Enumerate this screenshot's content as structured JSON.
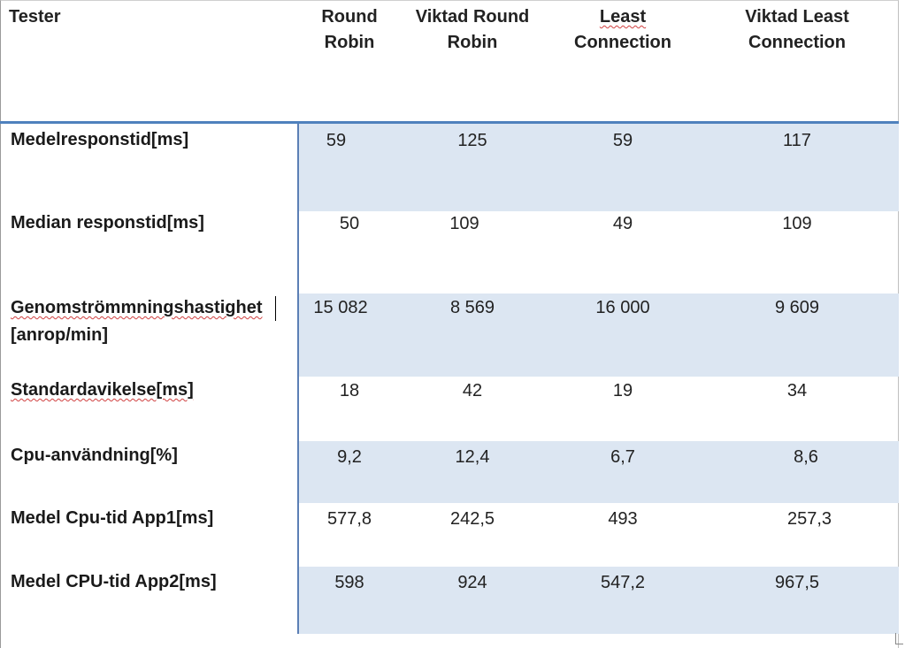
{
  "table": {
    "header": {
      "tester": "Tester",
      "columns": [
        {
          "line1": "Round",
          "line2": "Robin"
        },
        {
          "line1": "Viktad Round",
          "line2": "Robin"
        },
        {
          "line1": "Least",
          "line2": "Connection"
        },
        {
          "line1": "Viktad Least",
          "line2": "Connection"
        }
      ]
    },
    "rows": [
      {
        "label": "Medelresponstid[ms]",
        "values": [
          "59",
          "125",
          "59",
          "117"
        ]
      },
      {
        "label": "Median responstid[ms]",
        "values": [
          "50",
          "109",
          "49",
          "109"
        ]
      },
      {
        "label_line1": "Genomströmmningshastighet",
        "label_line2": "[anrop/min]",
        "values": [
          "15 082",
          "8 569",
          "16 000",
          "9 609"
        ]
      },
      {
        "label": "Standardavikelse[ms]",
        "values": [
          "18",
          "42",
          "19",
          "34"
        ]
      },
      {
        "label": "Cpu-användning[%]",
        "values": [
          "9,2",
          "12,4",
          "6,7",
          "8,6"
        ]
      },
      {
        "label": "Medel Cpu-tid App1[ms]",
        "values": [
          "577,8",
          "242,5",
          "493",
          "257,3"
        ]
      },
      {
        "label": "Medel CPU-tid App2[ms]",
        "values": [
          "598",
          "924",
          "547,2",
          "967,5"
        ]
      }
    ]
  },
  "colors": {
    "band": "#dce6f2",
    "rule": "#4f81bd"
  }
}
